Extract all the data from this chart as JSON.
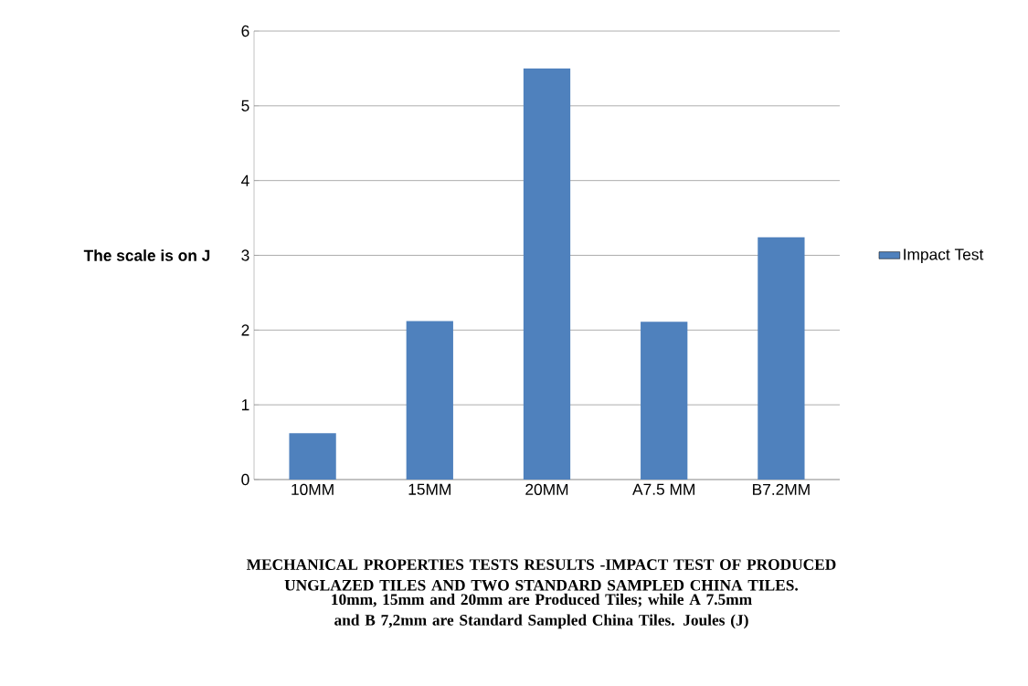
{
  "chart_data": {
    "type": "bar",
    "title": "MECHANICAL PROPERTIES TESTS RESULTS -IMPACT TEST OF  PRODUCED UNGLAZED TILES AND TWO STANDARD SAMPLED CHINA TILES.",
    "subtitle": "10mm, 15mm and 20mm are Produced Tiles; while A 7.5mm and B 7,2mm are Standard Sampled China Tiles. Joules (J)",
    "ylabel": "The scale is on  J",
    "categories": [
      "10MM",
      "15MM",
      "20MM",
      "A7.5 MM",
      "B7.2MM"
    ],
    "series": [
      {
        "name": "Impact Test",
        "color": "#4f81bd",
        "values": [
          0.62,
          2.12,
          5.5,
          2.11,
          3.24
        ]
      }
    ],
    "ylim": [
      0,
      6
    ],
    "yticks": [
      0,
      1,
      2,
      3,
      4,
      5,
      6
    ],
    "grid": "y",
    "legend": "right"
  }
}
